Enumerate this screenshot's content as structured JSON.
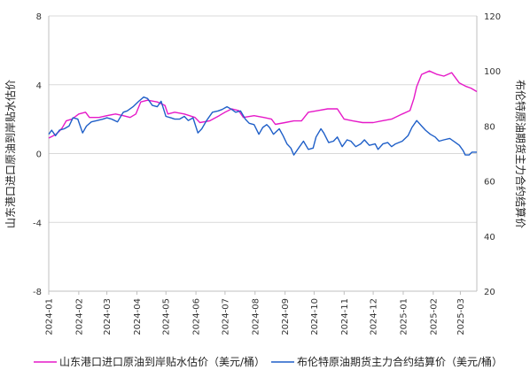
{
  "chart_data": {
    "type": "line",
    "title": "",
    "xlabel": "",
    "ylabel_left": "山东港口进口原油到岸贴水估价",
    "ylabel_right": "布伦特原油期货主力合约结算价",
    "xlim": [
      "2024-01-01",
      "2025-03-18"
    ],
    "ylim_left": [
      -8,
      8
    ],
    "ylim_right": [
      20,
      120
    ],
    "yticks_left": [
      8,
      4,
      0,
      -4,
      -8
    ],
    "yticks_right": [
      120,
      100,
      80,
      60,
      40,
      20
    ],
    "xticks": [
      "2024-01",
      "2024-02",
      "2024-03",
      "2024-04",
      "2024-05",
      "2024-06",
      "2024-07",
      "2024-08",
      "2024-09",
      "2024-10",
      "2024-11",
      "2024-12",
      "2025-01",
      "2025-02",
      "2025-03"
    ],
    "grid": "horizontal",
    "legend_position": "bottom",
    "colors": {
      "series_1": "#e619c8",
      "series_2": "#1f5fc8"
    },
    "series": [
      {
        "name": "山东港口进口原油到岸贴水估价（美元/桶）",
        "axis": "left",
        "color": "#e619c8",
        "points": [
          [
            "2024-01-01",
            0.9
          ],
          [
            "2024-01-08",
            1.1
          ],
          [
            "2024-01-12",
            1.3
          ],
          [
            "2024-01-15",
            1.5
          ],
          [
            "2024-01-19",
            1.9
          ],
          [
            "2024-01-25",
            2.0
          ],
          [
            "2024-02-01",
            2.3
          ],
          [
            "2024-02-08",
            2.4
          ],
          [
            "2024-02-12",
            2.1
          ],
          [
            "2024-02-22",
            2.1
          ],
          [
            "2024-03-01",
            2.2
          ],
          [
            "2024-03-10",
            2.3
          ],
          [
            "2024-03-18",
            2.2
          ],
          [
            "2024-03-25",
            2.1
          ],
          [
            "2024-03-31",
            2.3
          ],
          [
            "2024-04-05",
            3.0
          ],
          [
            "2024-04-12",
            3.1
          ],
          [
            "2024-04-22",
            3.0
          ],
          [
            "2024-04-30",
            2.8
          ],
          [
            "2024-05-03",
            2.3
          ],
          [
            "2024-05-10",
            2.4
          ],
          [
            "2024-05-20",
            2.3
          ],
          [
            "2024-05-31",
            2.1
          ],
          [
            "2024-06-05",
            1.8
          ],
          [
            "2024-06-15",
            1.9
          ],
          [
            "2024-06-25",
            2.2
          ],
          [
            "2024-07-01",
            2.4
          ],
          [
            "2024-07-08",
            2.6
          ],
          [
            "2024-07-15",
            2.5
          ],
          [
            "2024-07-20",
            2.1
          ],
          [
            "2024-07-31",
            2.2
          ],
          [
            "2024-08-10",
            2.1
          ],
          [
            "2024-08-18",
            2.0
          ],
          [
            "2024-08-22",
            1.7
          ],
          [
            "2024-09-01",
            1.8
          ],
          [
            "2024-09-10",
            1.9
          ],
          [
            "2024-09-18",
            1.9
          ],
          [
            "2024-09-25",
            2.4
          ],
          [
            "2024-10-05",
            2.5
          ],
          [
            "2024-10-15",
            2.6
          ],
          [
            "2024-10-25",
            2.6
          ],
          [
            "2024-11-01",
            2.0
          ],
          [
            "2024-11-10",
            1.9
          ],
          [
            "2024-11-20",
            1.8
          ],
          [
            "2024-12-01",
            1.8
          ],
          [
            "2024-12-10",
            1.9
          ],
          [
            "2024-12-20",
            2.0
          ],
          [
            "2024-12-31",
            2.3
          ],
          [
            "2025-01-08",
            2.5
          ],
          [
            "2025-01-12",
            3.2
          ],
          [
            "2025-01-15",
            3.9
          ],
          [
            "2025-01-20",
            4.6
          ],
          [
            "2025-01-28",
            4.8
          ],
          [
            "2025-02-05",
            4.6
          ],
          [
            "2025-02-12",
            4.5
          ],
          [
            "2025-02-20",
            4.7
          ],
          [
            "2025-02-28",
            4.1
          ],
          [
            "2025-03-07",
            3.9
          ],
          [
            "2025-03-12",
            3.8
          ],
          [
            "2025-03-18",
            3.6
          ]
        ]
      },
      {
        "name": "布伦特原油期货主力合约结算价（美元/桶）",
        "axis": "right",
        "color": "#1f5fc8",
        "points": [
          [
            "2024-01-01",
            77.0
          ],
          [
            "2024-01-04",
            78.5
          ],
          [
            "2024-01-08",
            76.5
          ],
          [
            "2024-01-12",
            78.5
          ],
          [
            "2024-01-17",
            79.0
          ],
          [
            "2024-01-22",
            80.0
          ],
          [
            "2024-01-26",
            83.0
          ],
          [
            "2024-01-31",
            82.5
          ],
          [
            "2024-02-05",
            77.5
          ],
          [
            "2024-02-09",
            80.0
          ],
          [
            "2024-02-14",
            81.5
          ],
          [
            "2024-02-20",
            82.0
          ],
          [
            "2024-02-26",
            82.5
          ],
          [
            "2024-03-01",
            83.0
          ],
          [
            "2024-03-06",
            82.5
          ],
          [
            "2024-03-12",
            81.5
          ],
          [
            "2024-03-18",
            85.0
          ],
          [
            "2024-03-22",
            85.5
          ],
          [
            "2024-03-28",
            87.0
          ],
          [
            "2024-04-03",
            89.0
          ],
          [
            "2024-04-08",
            90.5
          ],
          [
            "2024-04-12",
            90.0
          ],
          [
            "2024-04-17",
            87.5
          ],
          [
            "2024-04-22",
            87.0
          ],
          [
            "2024-04-26",
            89.0
          ],
          [
            "2024-05-01",
            83.5
          ],
          [
            "2024-05-06",
            83.0
          ],
          [
            "2024-05-10",
            82.5
          ],
          [
            "2024-05-15",
            82.5
          ],
          [
            "2024-05-20",
            83.5
          ],
          [
            "2024-05-24",
            82.0
          ],
          [
            "2024-05-29",
            83.0
          ],
          [
            "2024-06-03",
            77.5
          ],
          [
            "2024-06-07",
            79.0
          ],
          [
            "2024-06-12",
            82.0
          ],
          [
            "2024-06-18",
            85.0
          ],
          [
            "2024-06-24",
            85.5
          ],
          [
            "2024-06-28",
            86.0
          ],
          [
            "2024-07-03",
            87.0
          ],
          [
            "2024-07-08",
            86.0
          ],
          [
            "2024-07-12",
            85.0
          ],
          [
            "2024-07-17",
            85.5
          ],
          [
            "2024-07-22",
            82.5
          ],
          [
            "2024-07-26",
            81.0
          ],
          [
            "2024-07-31",
            80.5
          ],
          [
            "2024-08-05",
            77.0
          ],
          [
            "2024-08-09",
            79.5
          ],
          [
            "2024-08-13",
            80.5
          ],
          [
            "2024-08-16",
            79.5
          ],
          [
            "2024-08-20",
            77.0
          ],
          [
            "2024-08-26",
            79.0
          ],
          [
            "2024-08-30",
            76.5
          ],
          [
            "2024-09-03",
            73.5
          ],
          [
            "2024-09-07",
            72.0
          ],
          [
            "2024-09-10",
            69.5
          ],
          [
            "2024-09-15",
            72.0
          ],
          [
            "2024-09-20",
            74.5
          ],
          [
            "2024-09-25",
            71.5
          ],
          [
            "2024-09-30",
            72.0
          ],
          [
            "2024-10-03",
            76.0
          ],
          [
            "2024-10-08",
            79.0
          ],
          [
            "2024-10-11",
            77.5
          ],
          [
            "2024-10-16",
            74.0
          ],
          [
            "2024-10-21",
            74.5
          ],
          [
            "2024-10-25",
            76.0
          ],
          [
            "2024-10-30",
            72.5
          ],
          [
            "2024-11-04",
            75.0
          ],
          [
            "2024-11-08",
            74.5
          ],
          [
            "2024-11-13",
            72.5
          ],
          [
            "2024-11-18",
            73.5
          ],
          [
            "2024-11-22",
            75.0
          ],
          [
            "2024-11-27",
            73.0
          ],
          [
            "2024-12-03",
            73.5
          ],
          [
            "2024-12-06",
            71.5
          ],
          [
            "2024-12-11",
            73.5
          ],
          [
            "2024-12-16",
            74.0
          ],
          [
            "2024-12-20",
            72.5
          ],
          [
            "2024-12-24",
            73.5
          ],
          [
            "2024-12-31",
            74.5
          ],
          [
            "2025-01-06",
            76.5
          ],
          [
            "2025-01-10",
            79.5
          ],
          [
            "2025-01-15",
            82.0
          ],
          [
            "2025-01-20",
            80.0
          ],
          [
            "2025-01-24",
            78.5
          ],
          [
            "2025-01-29",
            77.0
          ],
          [
            "2025-02-03",
            76.0
          ],
          [
            "2025-02-07",
            74.5
          ],
          [
            "2025-02-12",
            75.0
          ],
          [
            "2025-02-18",
            75.5
          ],
          [
            "2025-02-24",
            74.0
          ],
          [
            "2025-02-28",
            73.0
          ],
          [
            "2025-03-04",
            71.0
          ],
          [
            "2025-03-06",
            69.5
          ],
          [
            "2025-03-10",
            69.5
          ],
          [
            "2025-03-13",
            70.5
          ],
          [
            "2025-03-18",
            70.5
          ]
        ]
      }
    ]
  }
}
